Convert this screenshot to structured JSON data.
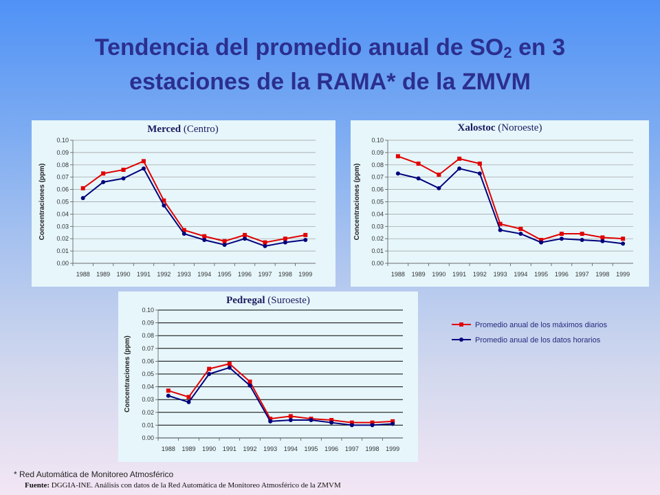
{
  "title": {
    "line1_prefix": "Tendencia del promedio anual de SO",
    "subscript": "2",
    "line1_suffix": " en 3",
    "line2": "estaciones de la RAMA* de la ZMVM"
  },
  "colors": {
    "max_series": "#e00000",
    "hourly_series": "#00007a"
  },
  "legend": {
    "max_label": "Promedio anual de los máximos diarios",
    "hourly_label": "Promedio anual de los datos horarios"
  },
  "footnote": "* Red Automática de Monitoreo Atmosférico",
  "source": {
    "label": "Fuente:",
    "text": " DGGIA-INE.  Análisis  con datos de la Red Automática de Monitoreo Atmosférico de la ZMVM"
  },
  "chart_data": [
    {
      "type": "line",
      "title_bold": "Merced",
      "title_rest": " (Centro)",
      "ylabel": "Concentraciones  (ppm)",
      "ylim": [
        0,
        0.1
      ],
      "x": [
        "1988",
        "1989",
        "1990",
        "1991",
        "1992",
        "1993",
        "1994",
        "1995",
        "1996",
        "1997",
        "1998",
        "1999"
      ],
      "series": [
        {
          "name": "Promedio anual de los máximos diarios",
          "values": [
            0.061,
            0.073,
            0.076,
            0.083,
            0.051,
            0.027,
            0.022,
            0.018,
            0.023,
            0.017,
            0.02,
            0.023
          ]
        },
        {
          "name": "Promedio anual de los datos horarios",
          "values": [
            0.053,
            0.066,
            0.069,
            0.077,
            0.047,
            0.024,
            0.019,
            0.015,
            0.02,
            0.014,
            0.017,
            0.019
          ]
        }
      ]
    },
    {
      "type": "line",
      "title_bold": "Xalostoc",
      "title_rest": " (Noroeste)",
      "ylabel": "Concentraciones  (ppm)",
      "ylim": [
        0,
        0.1
      ],
      "x": [
        "1988",
        "1989",
        "1990",
        "1991",
        "1992",
        "1993",
        "1994",
        "1995",
        "1996",
        "1997",
        "1998",
        "1999"
      ],
      "series": [
        {
          "name": "Promedio anual de los máximos diarios",
          "values": [
            0.087,
            0.081,
            0.072,
            0.085,
            0.081,
            0.032,
            0.028,
            0.019,
            0.024,
            0.024,
            0.021,
            0.02
          ]
        },
        {
          "name": "Promedio anual de los datos horarios",
          "values": [
            0.073,
            0.069,
            0.061,
            0.077,
            0.073,
            0.027,
            0.024,
            0.017,
            0.02,
            0.019,
            0.018,
            0.016
          ]
        }
      ]
    },
    {
      "type": "line",
      "title_bold": "Pedregal",
      "title_rest": " (Suroeste)",
      "ylabel": "Concentraciones  (ppm)",
      "ylim": [
        0,
        0.1
      ],
      "x": [
        "1988",
        "1989",
        "1990",
        "1991",
        "1992",
        "1993",
        "1994",
        "1995",
        "1996",
        "1997",
        "1998",
        "1999"
      ],
      "series": [
        {
          "name": "Promedio anual de los máximos diarios",
          "values": [
            0.037,
            0.032,
            0.054,
            0.058,
            0.044,
            0.015,
            0.017,
            0.015,
            0.014,
            0.012,
            0.012,
            0.013
          ]
        },
        {
          "name": "Promedio anual de los datos horarios",
          "values": [
            0.033,
            0.028,
            0.05,
            0.055,
            0.041,
            0.013,
            0.014,
            0.014,
            0.012,
            0.01,
            0.01,
            0.011
          ]
        }
      ]
    }
  ]
}
